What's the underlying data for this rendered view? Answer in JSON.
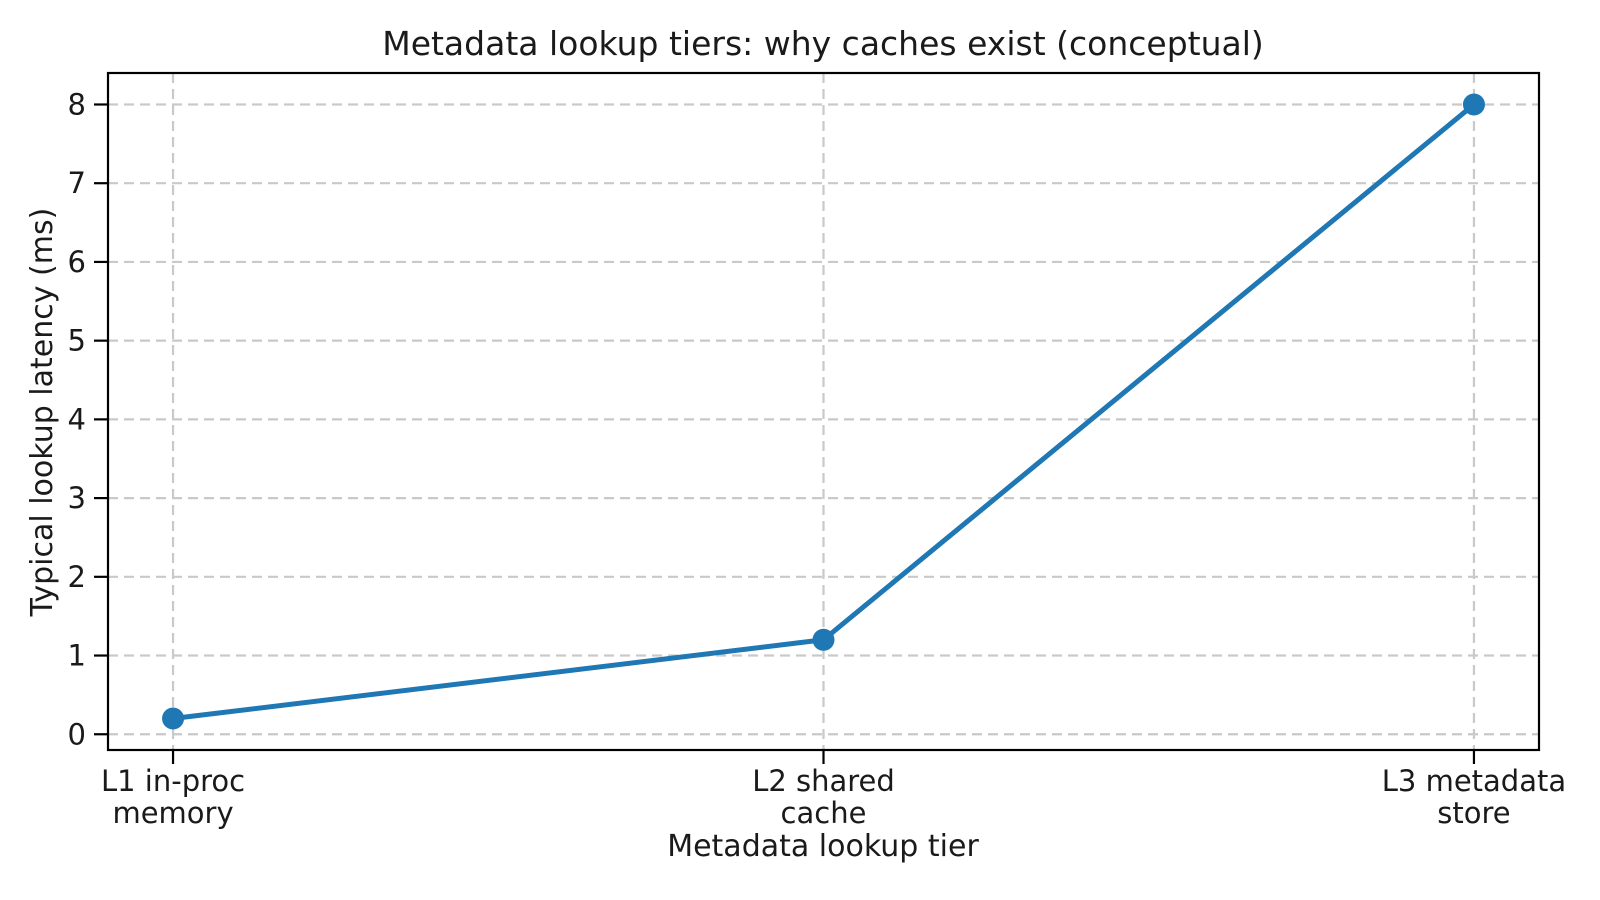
{
  "figure": {
    "background": "#ffffff"
  },
  "chart_data": {
    "type": "line",
    "title": "Metadata lookup tiers: why caches exist (conceptual)",
    "xlabel": "Metadata lookup tier",
    "ylabel": "Typical lookup latency (ms)",
    "categories": [
      "L1 in-proc\nmemory",
      "L2 shared\ncache",
      "L3 metadata\nstore"
    ],
    "values": [
      0.2,
      1.2,
      8.0
    ],
    "yticks": [
      0,
      1,
      2,
      3,
      4,
      5,
      6,
      7,
      8
    ],
    "ylim": [
      -0.2,
      8.4
    ],
    "xlim": [
      -0.1,
      2.1
    ],
    "grid": true,
    "grid_style": "dashed",
    "legend_position": "none",
    "colors": {
      "line": "#1f77b4",
      "marker": "#1f77b4",
      "grid": "#c9c9c9",
      "axis": "#000000",
      "text": "#1a1a1a",
      "background": "#ffffff"
    }
  }
}
